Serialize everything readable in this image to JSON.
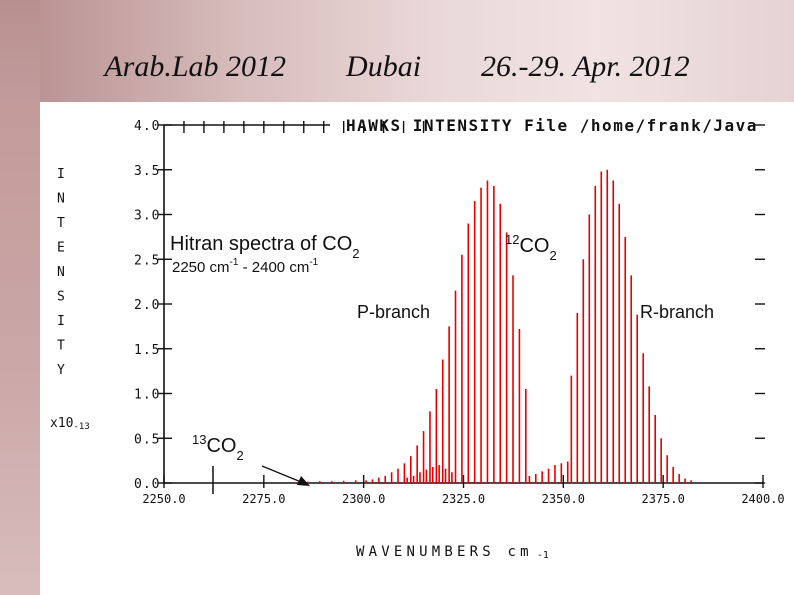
{
  "header": {
    "title": "Arab.Lab 2012        Dubai        26.-29. Apr. 2012"
  },
  "chart_data": {
    "type": "line",
    "title": "HAWKS INTENSITY File /home/frank/Java",
    "ylabel_letters": [
      "I",
      "N",
      "T",
      "E",
      "N",
      "S",
      "I",
      "T",
      "Y"
    ],
    "yscale_prefix": "x10",
    "yscale_exp": "-13",
    "xlabel": "WAVENUMBERS cm",
    "xlabel_exp": "-1",
    "xlim": [
      2250,
      2400
    ],
    "ylim": [
      0,
      4
    ],
    "xticks": [
      2250,
      2275,
      2300,
      2325,
      2350,
      2375,
      2400
    ],
    "xtick_labels": [
      "2250.0",
      "2275.0",
      "2300.0",
      "2325.0",
      "2350.0",
      "2375.0",
      "2400.0"
    ],
    "yticks": [
      0,
      0.5,
      1,
      1.5,
      2,
      2.5,
      3,
      3.5,
      4
    ],
    "ytick_labels": [
      "0.0",
      "0.5",
      "1.0",
      "1.5",
      "2.0",
      "2.5",
      "3.0",
      "3.5",
      "4.0"
    ],
    "series": [
      {
        "color": "#e60000",
        "style": "stick-spectrum",
        "points": [
          [
            2300.6,
            0.03
          ],
          [
            2302.2,
            0.04
          ],
          [
            2303.8,
            0.06
          ],
          [
            2305.4,
            0.08
          ],
          [
            2307.0,
            0.12
          ],
          [
            2308.6,
            0.16
          ],
          [
            2310.2,
            0.22
          ],
          [
            2311.8,
            0.3
          ],
          [
            2313.4,
            0.42
          ],
          [
            2315.0,
            0.58
          ],
          [
            2316.6,
            0.8
          ],
          [
            2318.2,
            1.05
          ],
          [
            2319.8,
            1.38
          ],
          [
            2321.4,
            1.75
          ],
          [
            2323.0,
            2.15
          ],
          [
            2324.6,
            2.55
          ],
          [
            2326.2,
            2.9
          ],
          [
            2327.8,
            3.15
          ],
          [
            2329.4,
            3.3
          ],
          [
            2331.0,
            3.38
          ],
          [
            2332.6,
            3.32
          ],
          [
            2334.2,
            3.12
          ],
          [
            2335.8,
            2.8
          ],
          [
            2337.4,
            2.32
          ],
          [
            2339.0,
            1.72
          ],
          [
            2340.6,
            1.05
          ],
          [
            2352.0,
            1.2
          ],
          [
            2353.5,
            1.9
          ],
          [
            2355.0,
            2.5
          ],
          [
            2356.5,
            3.0
          ],
          [
            2358.0,
            3.32
          ],
          [
            2359.5,
            3.48
          ],
          [
            2361.0,
            3.5
          ],
          [
            2362.5,
            3.38
          ],
          [
            2364.0,
            3.12
          ],
          [
            2365.5,
            2.75
          ],
          [
            2367.0,
            2.32
          ],
          [
            2368.5,
            1.88
          ],
          [
            2370.0,
            1.45
          ],
          [
            2371.5,
            1.08
          ],
          [
            2373.0,
            0.76
          ],
          [
            2374.5,
            0.5
          ],
          [
            2376.0,
            0.31
          ],
          [
            2377.5,
            0.18
          ],
          [
            2379.0,
            0.1
          ],
          [
            2380.5,
            0.05
          ],
          [
            2382.0,
            0.03
          ],
          [
            2310.9,
            0.06
          ],
          [
            2312.5,
            0.08
          ],
          [
            2314.1,
            0.12
          ],
          [
            2315.7,
            0.15
          ],
          [
            2317.3,
            0.18
          ],
          [
            2318.9,
            0.2
          ],
          [
            2320.5,
            0.16
          ],
          [
            2322.1,
            0.12
          ],
          [
            2341.5,
            0.08
          ],
          [
            2343.1,
            0.1
          ],
          [
            2344.7,
            0.13
          ],
          [
            2346.3,
            0.16
          ],
          [
            2347.9,
            0.2
          ],
          [
            2349.5,
            0.22
          ],
          [
            2351.1,
            0.24
          ],
          [
            2283.0,
            0.01
          ],
          [
            2286.0,
            0.015
          ],
          [
            2289.0,
            0.02
          ],
          [
            2292.0,
            0.02
          ],
          [
            2295.0,
            0.025
          ],
          [
            2298.0,
            0.03
          ]
        ]
      }
    ],
    "annotations": {
      "hitran_title": "Hitran spectra of CO",
      "hitran_title_sub": "2",
      "range_a": "2250 cm",
      "range_a_sup": "-1",
      "range_sep": " - 2400 cm",
      "range_b_sup": "-1",
      "co2_12_sup": "12",
      "co2_12_main": "CO",
      "co2_12_sub": "2",
      "pbranch": "P-branch",
      "rbranch": "R-branch",
      "co2_13_sup": "13",
      "co2_13_main": "CO",
      "co2_13_sub": "2"
    }
  }
}
